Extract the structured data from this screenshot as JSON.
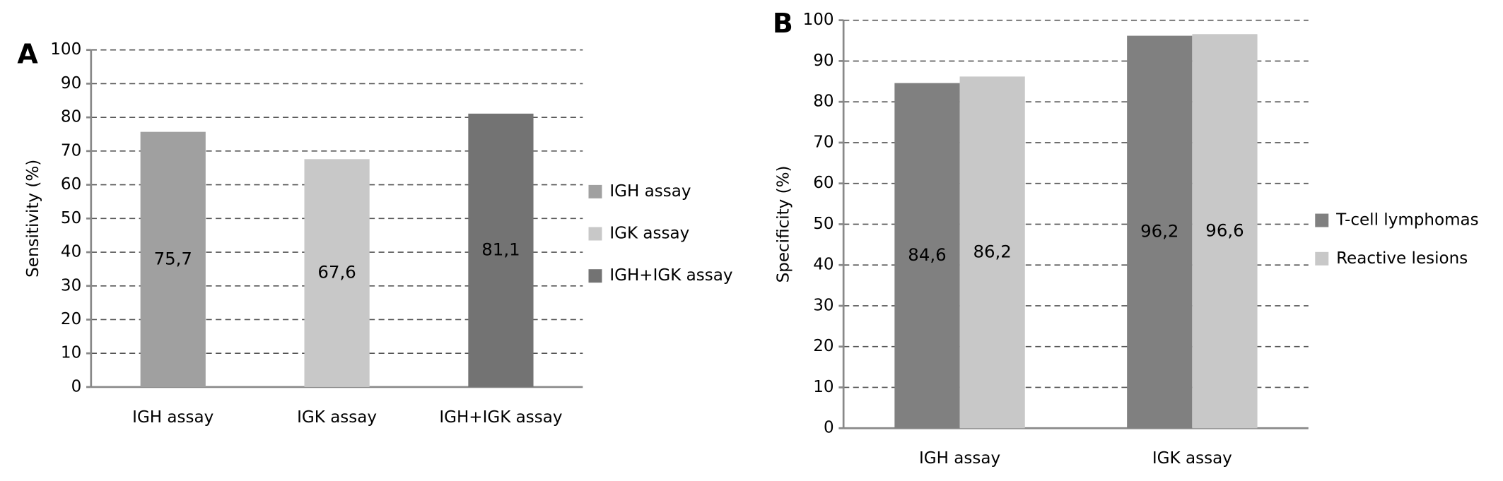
{
  "chart_data": [
    {
      "type": "bar",
      "panel_label": "A",
      "ylabel": "Sensitivity (%)",
      "categories": [
        "IGH assay",
        "IGK assay",
        "IGH+IGK assay"
      ],
      "values": [
        75.7,
        67.6,
        81.1
      ],
      "value_labels": [
        "75,7",
        "67,6",
        "81,1"
      ],
      "colors": [
        "#a0a0a0",
        "#c8c8c8",
        "#737373"
      ],
      "ylim": [
        0,
        100
      ],
      "yticks": [
        0,
        10,
        20,
        30,
        40,
        50,
        60,
        70,
        80,
        90,
        100
      ],
      "grid": true,
      "legend": "right"
    },
    {
      "type": "grouped_bar",
      "panel_label": "B",
      "ylabel": "Specificity (%)",
      "categories": [
        "IGH assay",
        "IGK assay"
      ],
      "series": [
        {
          "name": "T-cell lymphomas",
          "color": "#808080",
          "values": [
            84.6,
            96.2
          ],
          "value_labels": [
            "84,6",
            "96,2"
          ]
        },
        {
          "name": "Reactive lesions",
          "color": "#c8c8c8",
          "values": [
            86.2,
            96.6
          ],
          "value_labels": [
            "86,2",
            "96,6"
          ]
        }
      ],
      "ylim": [
        0,
        100
      ],
      "yticks": [
        0,
        10,
        20,
        30,
        40,
        50,
        60,
        70,
        80,
        90,
        100
      ],
      "grid": true,
      "legend": "right"
    }
  ]
}
